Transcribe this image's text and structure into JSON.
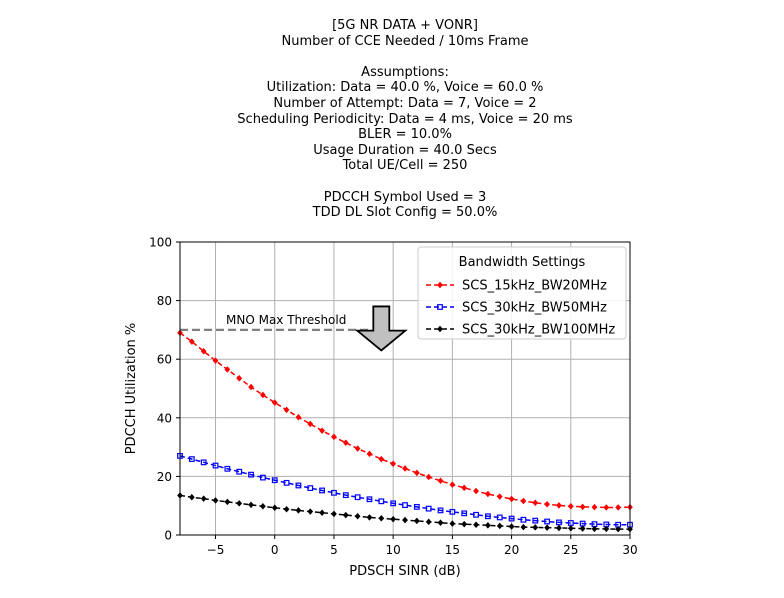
{
  "chart_data": {
    "type": "line",
    "title_lines": [
      "[5G NR DATA + VONR]",
      "Number of CCE Needed / 10ms Frame",
      "",
      "Assumptions:",
      "Utilization: Data = 40.0 %, Voice = 60.0 %",
      "Number of Attempt: Data = 7, Voice = 2",
      "Scheduling Periodicity: Data = 4 ms, Voice = 20 ms",
      "BLER = 10.0%",
      "Usage Duration = 40.0 Secs",
      "Total UE/Cell = 250",
      "",
      "PDCCH Symbol Used = 3",
      "TDD DL Slot Config = 50.0%"
    ],
    "xlabel": "PDSCH SINR (dB)",
    "ylabel": "PDCCH Utilization %",
    "xlim": [
      -8,
      30
    ],
    "ylim": [
      0,
      100
    ],
    "xticks": [
      -5,
      0,
      5,
      10,
      15,
      20,
      25,
      30
    ],
    "yticks": [
      0,
      20,
      40,
      60,
      80,
      100
    ],
    "xtick_labels": [
      "−5",
      "0",
      "5",
      "10",
      "15",
      "20",
      "25",
      "30"
    ],
    "ytick_labels": [
      "0",
      "20",
      "40",
      "60",
      "80",
      "100"
    ],
    "grid": true,
    "legend": {
      "title": "Bandwidth Settings",
      "position": "top-right"
    },
    "x": [
      -8,
      -7,
      -6,
      -5,
      -4,
      -3,
      -2,
      -1,
      0,
      1,
      2,
      3,
      4,
      5,
      6,
      7,
      8,
      9,
      10,
      11,
      12,
      13,
      14,
      15,
      16,
      17,
      18,
      19,
      20,
      21,
      22,
      23,
      24,
      25,
      26,
      27,
      28,
      29,
      30
    ],
    "series": [
      {
        "name": "SCS_15kHz_BW20MHz",
        "color": "#ff0000",
        "marker": "diamond",
        "values": [
          69.0,
          66.0,
          62.7,
          59.5,
          56.5,
          53.5,
          50.5,
          47.8,
          45.2,
          42.7,
          40.2,
          37.9,
          35.6,
          33.5,
          31.5,
          29.5,
          27.7,
          25.9,
          24.3,
          22.7,
          21.2,
          19.8,
          18.5,
          17.2,
          16.1,
          15.0,
          14.0,
          13.1,
          12.3,
          11.6,
          11.0,
          10.5,
          10.1,
          9.8,
          9.6,
          9.5,
          9.4,
          9.4,
          9.5
        ]
      },
      {
        "name": "SCS_30kHz_BW50MHz",
        "color": "#0000ff",
        "marker": "square",
        "values": [
          27.0,
          25.9,
          24.8,
          23.7,
          22.6,
          21.6,
          20.6,
          19.6,
          18.7,
          17.8,
          16.9,
          16.0,
          15.2,
          14.4,
          13.6,
          12.9,
          12.2,
          11.5,
          10.8,
          10.2,
          9.6,
          9.0,
          8.4,
          7.9,
          7.4,
          6.9,
          6.4,
          6.0,
          5.6,
          5.2,
          4.9,
          4.6,
          4.3,
          4.1,
          3.9,
          3.7,
          3.6,
          3.5,
          3.5
        ]
      },
      {
        "name": "SCS_30kHz_BW100MHz",
        "color": "#000000",
        "marker": "diamond",
        "values": [
          13.5,
          12.9,
          12.4,
          11.8,
          11.3,
          10.8,
          10.3,
          9.8,
          9.3,
          8.8,
          8.4,
          8.0,
          7.6,
          7.2,
          6.8,
          6.4,
          6.0,
          5.7,
          5.4,
          5.1,
          4.8,
          4.5,
          4.2,
          3.9,
          3.7,
          3.5,
          3.3,
          3.1,
          2.9,
          2.7,
          2.6,
          2.5,
          2.4,
          2.3,
          2.2,
          2.1,
          2.1,
          2.0,
          2.0
        ]
      }
    ],
    "annotation": {
      "text": "MNO Max Threshold",
      "threshold_y": 70,
      "x_start": -8,
      "x_end": 8,
      "arrow_x": 9,
      "arrow_top_y": 78,
      "arrow_bottom_y": 63,
      "line_color": "#808080",
      "arrow_fill": "#c0c0c0"
    }
  }
}
